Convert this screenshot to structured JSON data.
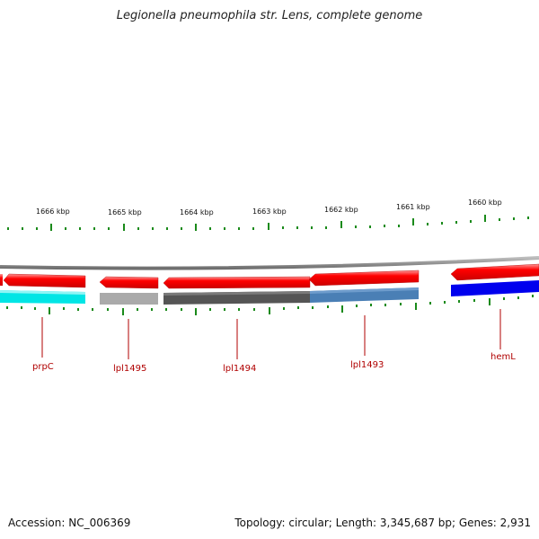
{
  "title": "Legionella pneumophila str. Lens, complete genome",
  "footer": {
    "accession": "Accession: NC_006369",
    "summary": "Topology: circular; Length: 3,345,687 bp; Genes: 2,931"
  },
  "scale_labels": [
    "1666 kbp",
    "1665 kbp",
    "1664 kbp",
    "1663 kbp",
    "1662 kbp",
    "1661 kbp",
    "1660 kbp"
  ],
  "genes": [
    {
      "name": "prpC",
      "strand": "reverse",
      "fill": "#ff0000",
      "class_color": "#00e5e5"
    },
    {
      "name": "lpl1495",
      "label": "lpl1495",
      "strand": "reverse",
      "fill": "#ff0000",
      "class_color": "#aaaaaa"
    },
    {
      "name": "lpl1494",
      "label": "lpl1494",
      "strand": "reverse",
      "fill": "#ff0000",
      "class_color": "#555555"
    },
    {
      "name": "lpl1493",
      "label": "lpl1493",
      "strand": "reverse",
      "fill": "#ff0000",
      "class_color": "#4a7fb5"
    },
    {
      "name": "hemL",
      "label": "hemL",
      "strand": "reverse",
      "fill": "#ff0000",
      "class_color": "#0000ee"
    }
  ],
  "colors": {
    "backbone": "#777777",
    "tick": "#1a8a1a",
    "gene_label": "#b00000"
  }
}
